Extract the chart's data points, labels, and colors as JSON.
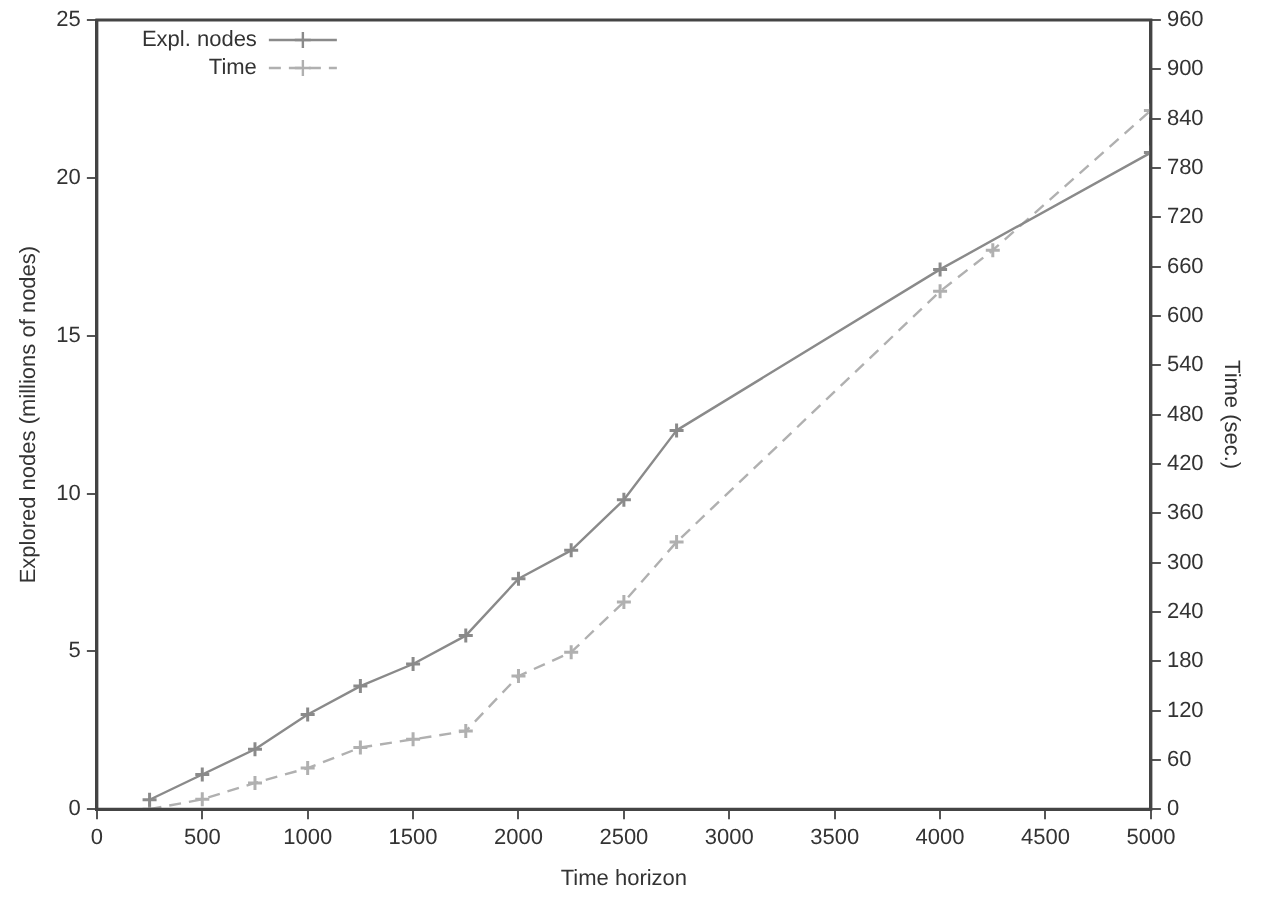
{
  "chart_data": {
    "type": "line",
    "xlabel": "Time horizon",
    "ylabel": "Explored nodes (millions of nodes)",
    "y2label": "Time (sec.)",
    "xlim": [
      0,
      5000
    ],
    "xticks": [
      0,
      500,
      1000,
      1500,
      2000,
      2500,
      3000,
      3500,
      4000,
      4500,
      5000
    ],
    "ylim": [
      0,
      25
    ],
    "yticks": [
      0,
      5,
      10,
      15,
      20,
      25
    ],
    "y2lim": [
      0,
      960
    ],
    "y2ticks": [
      0,
      60,
      120,
      180,
      240,
      300,
      360,
      420,
      480,
      540,
      600,
      660,
      720,
      780,
      840,
      900,
      960
    ],
    "grid": false,
    "legend": "top left",
    "marker": "cross",
    "series": [
      {
        "name": "Expl. nodes",
        "color": "#8a8a8a",
        "line_style": "solid",
        "x": [
          250,
          500,
          750,
          1000,
          1250,
          1500,
          1750,
          2000,
          2250,
          2500,
          2750,
          4000,
          5000
        ],
        "values": [
          0.3,
          1.1,
          1.9,
          3.0,
          3.9,
          4.6,
          5.5,
          7.3,
          8.2,
          9.8,
          12.0,
          17.1,
          20.8
        ]
      },
      {
        "name": "Time",
        "color": "#b0b0b0",
        "line_style": "dashed",
        "axis": "y2",
        "x": [
          250,
          500,
          750,
          1000,
          1250,
          1500,
          1750,
          2000,
          2250,
          2500,
          2750,
          4000,
          4250,
          5000
        ],
        "values": [
          0,
          12,
          32,
          50,
          75,
          85,
          95,
          162,
          191,
          252,
          325,
          630,
          680,
          850
        ]
      }
    ]
  }
}
